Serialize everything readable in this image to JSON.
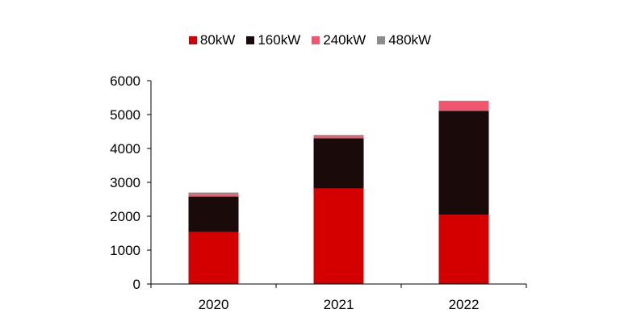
{
  "chart_data": {
    "type": "bar",
    "stacked": true,
    "categories": [
      "2020",
      "2021",
      "2022"
    ],
    "series": [
      {
        "name": "80kW",
        "color": "#d40000",
        "values": [
          1530,
          2820,
          2040
        ]
      },
      {
        "name": "160kW",
        "color": "#1a0a0a",
        "values": [
          1050,
          1480,
          3070
        ]
      },
      {
        "name": "240kW",
        "color": "#f0566e",
        "values": [
          60,
          60,
          270
        ]
      },
      {
        "name": "480kW",
        "color": "#8c8c8c",
        "values": [
          60,
          40,
          30
        ]
      }
    ],
    "ylim": [
      0,
      6000
    ],
    "yticks": [
      "0",
      "1000",
      "2000",
      "3000",
      "4000",
      "5000",
      "6000"
    ],
    "legend_position": "top",
    "grid": false
  }
}
